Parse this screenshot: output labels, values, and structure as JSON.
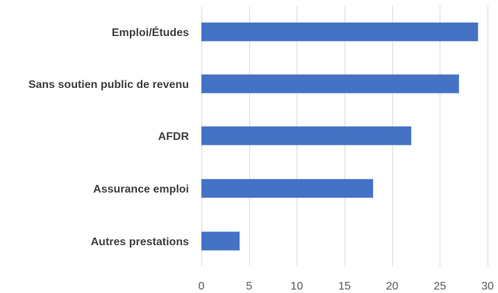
{
  "chart_data": {
    "type": "bar",
    "orientation": "horizontal",
    "categories": [
      "Emploi/Études",
      "Sans soutien public de revenu",
      "AFDR",
      "Assurance emploi",
      "Autres prestations"
    ],
    "values": [
      29,
      27,
      22,
      18,
      4
    ],
    "title": "",
    "xlabel": "",
    "ylabel": "",
    "xlim": [
      0,
      30
    ],
    "x_ticks": [
      0,
      5,
      10,
      15,
      20,
      25,
      30
    ],
    "x_tick_labels": [
      "0",
      "5",
      "10",
      "15",
      "20",
      "25",
      "30"
    ],
    "grid": true,
    "grid_axis": "x",
    "legend": "none",
    "colors": {
      "bar": "#4472C4",
      "grid": "#D9D9D9",
      "category_text": "#404040",
      "tick_text": "#595959",
      "background": "#FFFFFF"
    }
  }
}
